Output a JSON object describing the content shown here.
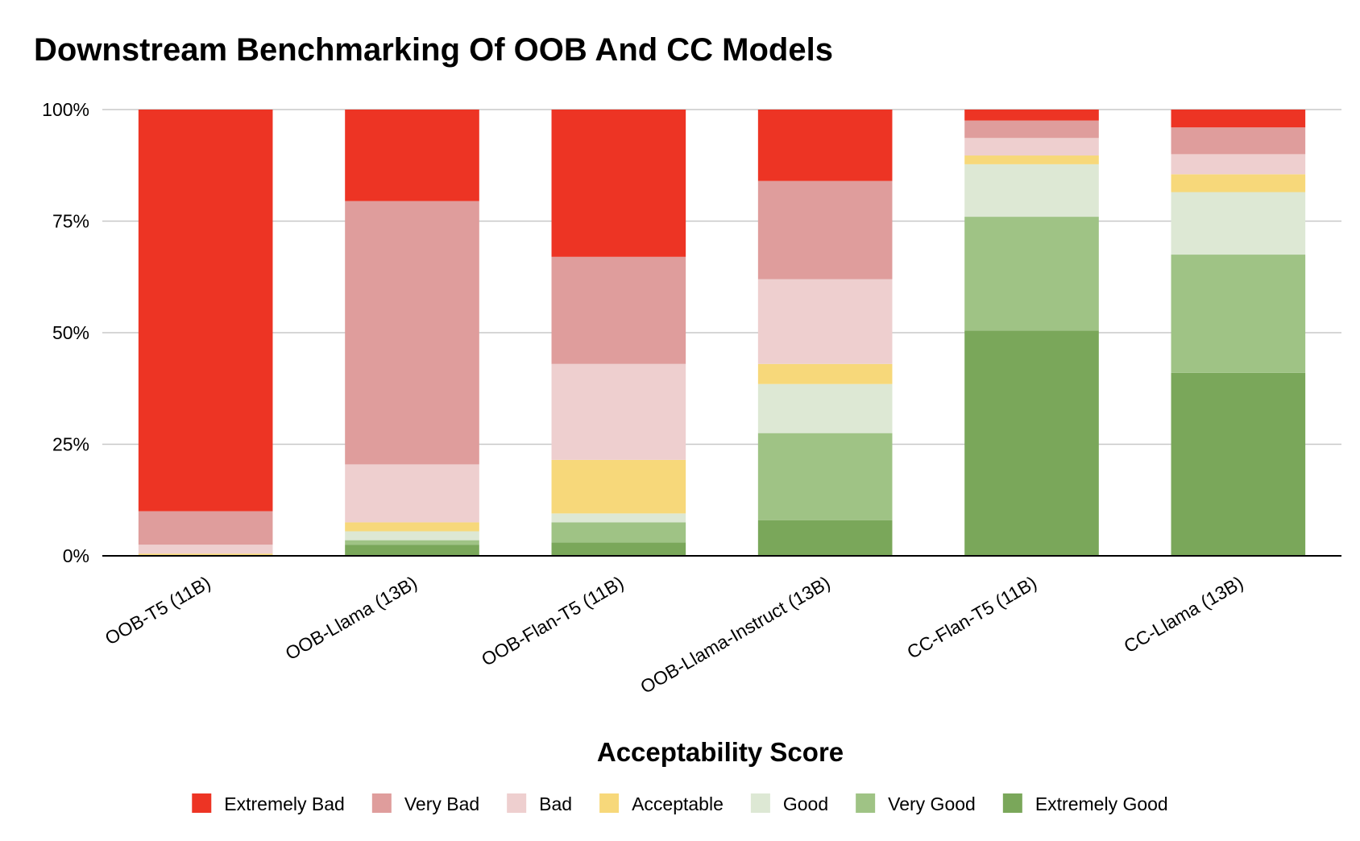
{
  "title": "Downstream Benchmarking Of OOB And CC Models",
  "chart_data": {
    "type": "bar",
    "stacked": true,
    "normalized": true,
    "title": "Downstream Benchmarking Of OOB And CC Models",
    "xlabel": "Acceptability Score",
    "ylabel": "",
    "ylim": [
      0,
      100
    ],
    "yticks": [
      "0%",
      "25%",
      "50%",
      "75%",
      "100%"
    ],
    "grid": true,
    "legend_position": "bottom",
    "categories": [
      "OOB-T5 (11B)",
      "OOB-Llama (13B)",
      "OOB-Flan-T5 (11B)",
      "OOB-Llama-Instruct (13B)",
      "CC-Flan-T5 (11B)",
      "CC-Llama (13B)"
    ],
    "series": [
      {
        "name": "Extremely Good",
        "color": "#7aa75a",
        "values": [
          0,
          2.5,
          3,
          8,
          51.5,
          41
        ]
      },
      {
        "name": "Very Good",
        "color": "#9fc385",
        "values": [
          0,
          1,
          4.5,
          19.5,
          26,
          26.5
        ]
      },
      {
        "name": "Good",
        "color": "#dde8d4",
        "values": [
          0,
          2,
          2,
          11,
          12,
          14
        ]
      },
      {
        "name": "Acceptable",
        "color": "#f7d87a",
        "values": [
          0.5,
          2,
          12,
          4.5,
          2,
          4
        ]
      },
      {
        "name": "Bad",
        "color": "#eecfcf",
        "values": [
          2,
          13,
          21.5,
          19,
          4,
          4.5
        ]
      },
      {
        "name": "Very Bad",
        "color": "#df9d9c",
        "values": [
          7.5,
          59,
          24,
          22,
          4,
          6
        ]
      },
      {
        "name": "Extremely Bad",
        "color": "#ed3424",
        "values": [
          90,
          20.5,
          33,
          16,
          2.5,
          4
        ]
      }
    ],
    "legend_order": [
      "Extremely Bad",
      "Very Bad",
      "Bad",
      "Acceptable",
      "Good",
      "Very Good",
      "Extremely Good"
    ]
  }
}
